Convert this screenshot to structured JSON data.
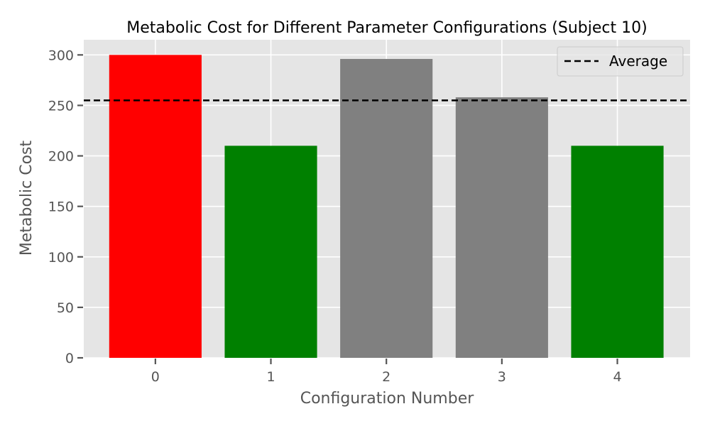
{
  "chart_data": {
    "type": "bar",
    "title": "Metabolic Cost for Different Parameter Configurations (Subject 10)",
    "xlabel": "Configuration Number",
    "ylabel": "Metabolic Cost",
    "categories": [
      "0",
      "1",
      "2",
      "3",
      "4"
    ],
    "values": [
      300,
      210,
      296,
      258,
      210
    ],
    "bar_colors": [
      "#ff0000",
      "#008000",
      "#808080",
      "#808080",
      "#008000"
    ],
    "ylim": [
      0,
      315
    ],
    "yticks": [
      0,
      50,
      100,
      150,
      200,
      250,
      300
    ],
    "grid": true,
    "reference_line": {
      "name": "Average",
      "value": 255,
      "style": "dashed",
      "color": "#000000"
    },
    "legend": {
      "position": "top-right",
      "entries": [
        "Average"
      ]
    },
    "background_color": "#e5e5e5",
    "grid_color": "#ffffff"
  }
}
